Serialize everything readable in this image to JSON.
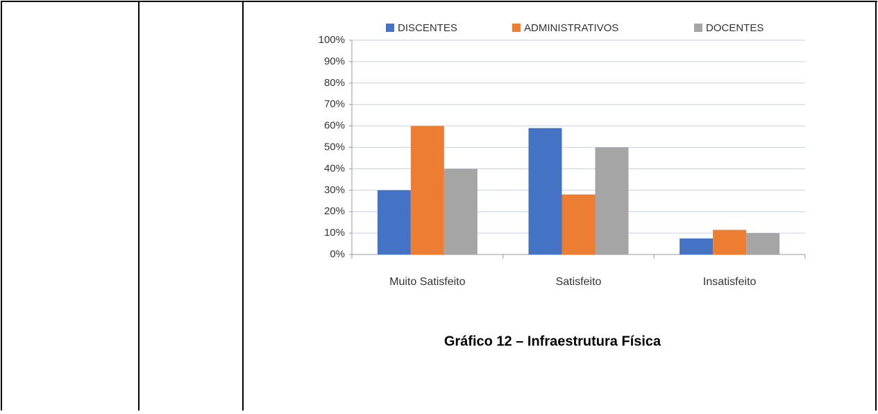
{
  "chart_data": {
    "type": "bar",
    "title": "Gráfico 12 – Infraestrutura Física",
    "categories": [
      "Muito Satisfeito",
      "Satisfeito",
      "Insatisfeito"
    ],
    "series": [
      {
        "name": "DISCENTES",
        "color": "#4472c4",
        "values": [
          30,
          59,
          7.5
        ]
      },
      {
        "name": "ADMINISTRATIVOS",
        "color": "#ed7d31",
        "values": [
          60,
          28,
          11.5
        ]
      },
      {
        "name": "DOCENTES",
        "color": "#a5a5a5",
        "values": [
          40,
          50,
          10
        ]
      }
    ],
    "ylim": [
      0,
      100
    ],
    "yticks": [
      {
        "value": 0,
        "label": "0%"
      },
      {
        "value": 10,
        "label": "10%"
      },
      {
        "value": 20,
        "label": "20%"
      },
      {
        "value": 30,
        "label": "30%"
      },
      {
        "value": 40,
        "label": "40%"
      },
      {
        "value": 50,
        "label": "50%"
      },
      {
        "value": 60,
        "label": "60%"
      },
      {
        "value": 70,
        "label": "70%"
      },
      {
        "value": 80,
        "label": "80%"
      },
      {
        "value": 90,
        "label": "90%"
      },
      {
        "value": 100,
        "label": "100%"
      }
    ],
    "grid": true,
    "legend": "top"
  }
}
